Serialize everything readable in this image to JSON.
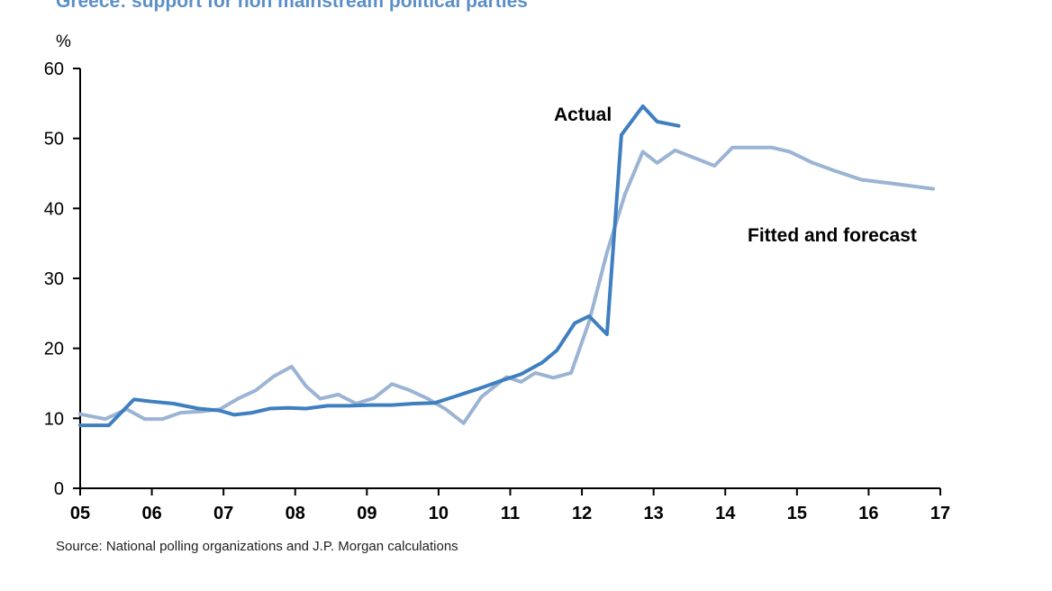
{
  "chart_data": {
    "type": "line",
    "title": "Greece: support for non mainstream political parties",
    "ylabel": "%",
    "xlabel": "",
    "ylim": [
      0,
      60
    ],
    "xlim": [
      2005,
      2017
    ],
    "yticks": [
      0,
      10,
      20,
      30,
      40,
      50,
      60
    ],
    "xticks": [
      {
        "label": "05",
        "value": 2005
      },
      {
        "label": "06",
        "value": 2006
      },
      {
        "label": "07",
        "value": 2007
      },
      {
        "label": "08",
        "value": 2008
      },
      {
        "label": "09",
        "value": 2009
      },
      {
        "label": "10",
        "value": 2010
      },
      {
        "label": "11",
        "value": 2011
      },
      {
        "label": "12",
        "value": 2012
      },
      {
        "label": "13",
        "value": 2013
      },
      {
        "label": "14",
        "value": 2014
      },
      {
        "label": "15",
        "value": 2015
      },
      {
        "label": "16",
        "value": 2016
      },
      {
        "label": "17",
        "value": 2017
      }
    ],
    "series": [
      {
        "name": "Actual",
        "color": "#3f7fbf",
        "points": [
          [
            2005.0,
            9.0
          ],
          [
            2005.4,
            9.0
          ],
          [
            2005.75,
            12.7
          ],
          [
            2006.0,
            12.4
          ],
          [
            2006.3,
            12.1
          ],
          [
            2006.65,
            11.4
          ],
          [
            2006.95,
            11.1
          ],
          [
            2007.15,
            10.5
          ],
          [
            2007.4,
            10.8
          ],
          [
            2007.65,
            11.4
          ],
          [
            2007.9,
            11.5
          ],
          [
            2008.15,
            11.4
          ],
          [
            2008.45,
            11.8
          ],
          [
            2008.75,
            11.8
          ],
          [
            2009.05,
            11.9
          ],
          [
            2009.35,
            11.9
          ],
          [
            2009.65,
            12.1
          ],
          [
            2009.95,
            12.2
          ],
          [
            2010.25,
            13.2
          ],
          [
            2010.55,
            14.2
          ],
          [
            2010.85,
            15.3
          ],
          [
            2011.15,
            16.3
          ],
          [
            2011.45,
            18.0
          ],
          [
            2011.65,
            19.7
          ],
          [
            2011.9,
            23.6
          ],
          [
            2012.1,
            24.6
          ],
          [
            2012.35,
            22.0
          ],
          [
            2012.55,
            50.5
          ],
          [
            2012.85,
            54.6
          ],
          [
            2013.05,
            52.4
          ],
          [
            2013.35,
            51.8
          ]
        ]
      },
      {
        "name": "Fitted and forecast",
        "color": "#9bb4d3",
        "points": [
          [
            2005.0,
            10.6
          ],
          [
            2005.35,
            9.9
          ],
          [
            2005.65,
            11.3
          ],
          [
            2005.9,
            9.9
          ],
          [
            2006.15,
            9.9
          ],
          [
            2006.4,
            10.8
          ],
          [
            2006.7,
            11.0
          ],
          [
            2006.95,
            11.3
          ],
          [
            2007.2,
            12.8
          ],
          [
            2007.45,
            14.0
          ],
          [
            2007.7,
            16.0
          ],
          [
            2007.95,
            17.4
          ],
          [
            2008.15,
            14.6
          ],
          [
            2008.35,
            12.8
          ],
          [
            2008.6,
            13.4
          ],
          [
            2008.85,
            12.1
          ],
          [
            2009.1,
            12.9
          ],
          [
            2009.35,
            14.9
          ],
          [
            2009.6,
            14.0
          ],
          [
            2009.85,
            12.8
          ],
          [
            2010.1,
            11.3
          ],
          [
            2010.35,
            9.3
          ],
          [
            2010.6,
            13.1
          ],
          [
            2010.95,
            15.9
          ],
          [
            2011.15,
            15.2
          ],
          [
            2011.35,
            16.5
          ],
          [
            2011.6,
            15.8
          ],
          [
            2011.85,
            16.5
          ],
          [
            2012.1,
            23.8
          ],
          [
            2012.35,
            33.7
          ],
          [
            2012.6,
            42.0
          ],
          [
            2012.85,
            48.1
          ],
          [
            2013.05,
            46.5
          ],
          [
            2013.3,
            48.3
          ],
          [
            2013.55,
            47.3
          ],
          [
            2013.85,
            46.1
          ],
          [
            2014.1,
            48.7
          ],
          [
            2014.4,
            48.7
          ],
          [
            2014.65,
            48.7
          ],
          [
            2014.9,
            48.1
          ],
          [
            2015.2,
            46.6
          ],
          [
            2015.55,
            45.3
          ],
          [
            2015.9,
            44.1
          ],
          [
            2016.3,
            43.6
          ],
          [
            2016.6,
            43.2
          ],
          [
            2016.9,
            42.8
          ]
        ]
      }
    ]
  },
  "source_text": "Source: National polling organizations and J.P. Morgan calculations"
}
